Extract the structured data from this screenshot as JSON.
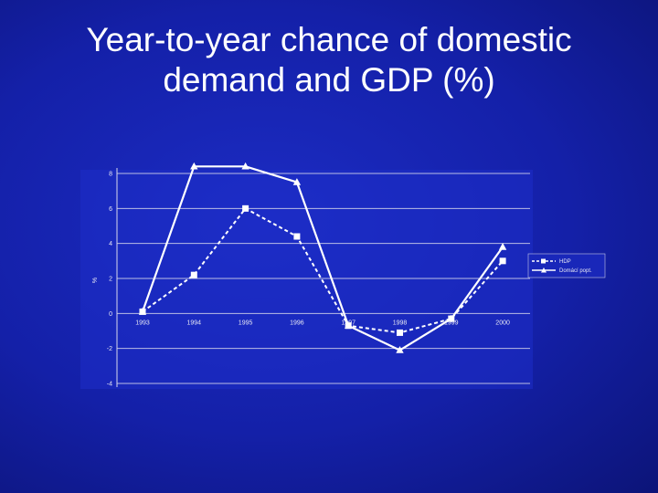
{
  "slide": {
    "title_line1": "Year-to-year chance of domestic",
    "title_line2": "demand and GDP (%)"
  },
  "chart_data": {
    "type": "line",
    "title": "Year-to-year chance of domestic demand and GDP (%)",
    "ylabel": "%",
    "xlabel": "",
    "categories": [
      "1993",
      "1994",
      "1995",
      "1996",
      "1997",
      "1998",
      "1999",
      "2000"
    ],
    "ylim": [
      -4,
      8
    ],
    "yticks": [
      -4,
      -2,
      0,
      2,
      4,
      6,
      8
    ],
    "grid": true,
    "legend": "right",
    "series": [
      {
        "name": "HDP",
        "style": "dashed",
        "marker": "square",
        "values": [
          0.1,
          2.2,
          6.0,
          4.4,
          -0.7,
          -1.1,
          -0.3,
          3.0
        ]
      },
      {
        "name": "Domácí popt.",
        "style": "solid",
        "marker": "triangle",
        "values": [
          0.1,
          8.4,
          8.4,
          7.5,
          -0.7,
          -2.1,
          -0.3,
          3.8
        ]
      }
    ],
    "colors": {
      "lines": "#ffffff",
      "grid": "#d8d8ec",
      "background": "#1a28bc"
    }
  }
}
